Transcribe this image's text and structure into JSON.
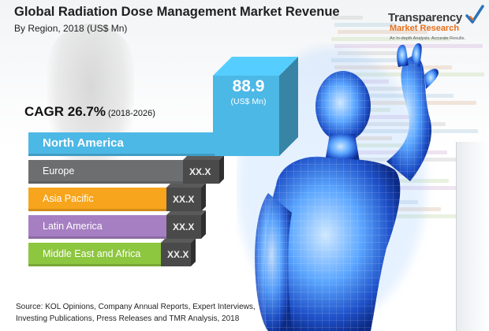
{
  "header": {
    "title": "Global Radiation Dose Management Market Revenue",
    "subtitle": "By Region, 2018 (US$ Mn)"
  },
  "logo": {
    "name": "Transparency",
    "name2": "Market Research",
    "tagline": "An In-depth Analysis. Accurate Results."
  },
  "cagr": {
    "text": "CAGR 26.7%",
    "years": "(2018-2026)"
  },
  "highlight": {
    "value": "88.9",
    "unit": "(US$ Mn)"
  },
  "source": {
    "line1": "Source: KOL Opinions, Company Annual Reports, Expert Interviews,",
    "line2": "Investing Publications, Press Releases and TMR Analysis, 2018"
  },
  "colors": {
    "north_america": "#4cb8e6",
    "europe": "#6d6e70",
    "asia_pacific": "#f7a51c",
    "latin_america": "#a57fc1",
    "middle_east_africa": "#8dc63f"
  },
  "chart_data": {
    "type": "bar",
    "title": "Global Radiation Dose Management Market Revenue",
    "subtitle": "By Region, 2018 (US$ Mn)",
    "categories": [
      "North America",
      "Europe",
      "Asia Pacific",
      "Latin America",
      "Middle East and Africa"
    ],
    "values": [
      88.9,
      null,
      null,
      null,
      null
    ],
    "value_labels": [
      "88.9",
      "XX.X",
      "XX.X",
      "XX.X",
      "XX.X"
    ],
    "unit": "US$ Mn",
    "orientation": "horizontal",
    "annotation": "CAGR 26.7% (2018-2026)"
  }
}
